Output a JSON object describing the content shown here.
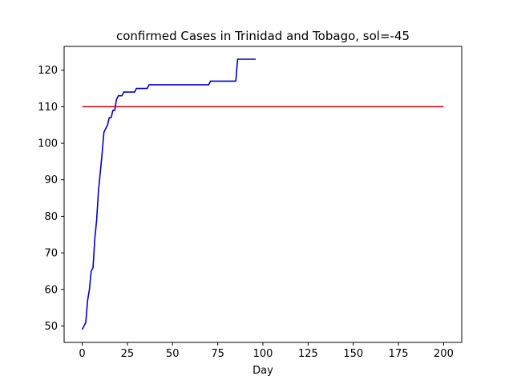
{
  "chart_data": {
    "type": "line",
    "title": "confirmed Cases in Trinidad and Tobago, sol=-45",
    "xlabel": "Day",
    "ylabel": "",
    "xlim": [
      -10,
      210
    ],
    "ylim": [
      45.5,
      126.5
    ],
    "xticks": [
      0,
      25,
      50,
      75,
      100,
      125,
      150,
      175,
      200
    ],
    "yticks": [
      50,
      60,
      70,
      80,
      90,
      100,
      110,
      120
    ],
    "grid": false,
    "series": [
      {
        "color": "#0000cc",
        "x": [
          0,
          1,
          2,
          3,
          4,
          5,
          6,
          7,
          8,
          9,
          10,
          11,
          12,
          13,
          14,
          15,
          16,
          17,
          18,
          19,
          20,
          21,
          22,
          23,
          24,
          25,
          26,
          27,
          28,
          29,
          30,
          31,
          32,
          33,
          34,
          35,
          36,
          37,
          38,
          39,
          40,
          45,
          50,
          55,
          60,
          65,
          70,
          71,
          72,
          75,
          80,
          85,
          86,
          87,
          90,
          96
        ],
        "y": [
          49,
          50,
          51,
          57,
          60,
          65,
          66,
          74,
          79,
          87,
          92,
          97,
          103,
          104,
          105,
          107,
          107,
          109,
          109,
          112,
          113,
          113,
          113,
          114,
          114,
          114,
          114,
          114,
          114,
          114,
          115,
          115,
          115,
          115,
          115,
          115,
          115,
          116,
          116,
          116,
          116,
          116,
          116,
          116,
          116,
          116,
          116,
          117,
          117,
          117,
          117,
          117,
          123,
          123,
          123,
          123
        ]
      },
      {
        "color": "#cc0000",
        "x": [
          0,
          200
        ],
        "y": [
          110,
          110
        ]
      }
    ]
  }
}
